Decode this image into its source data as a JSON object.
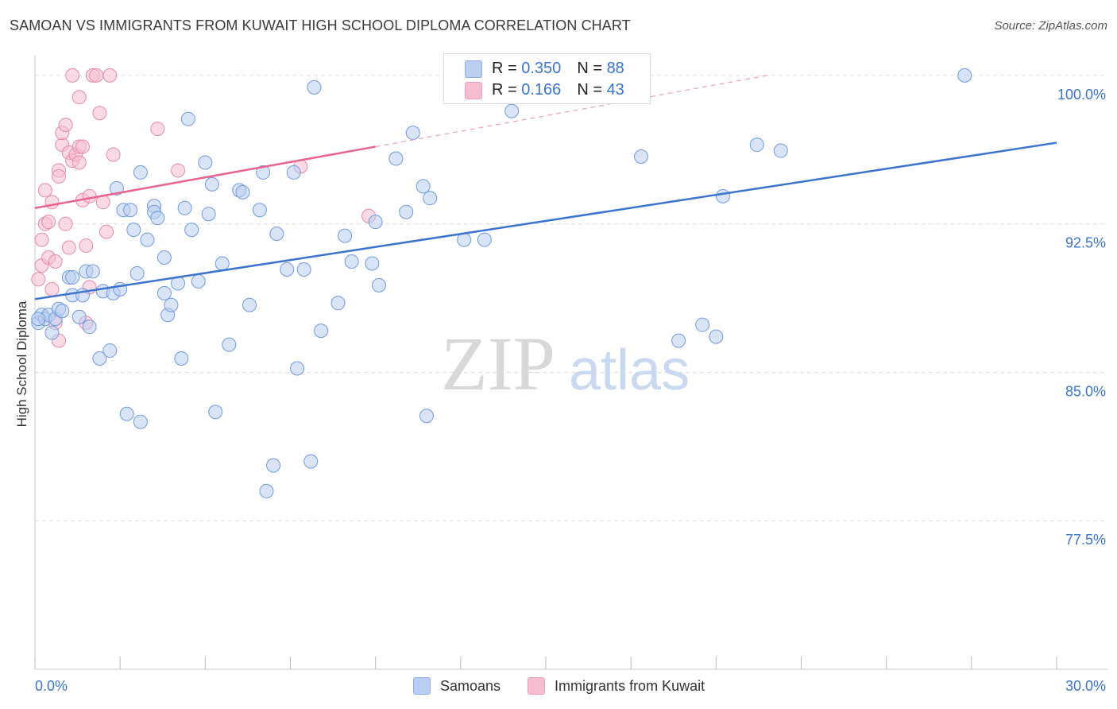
{
  "title": "SAMOAN VS IMMIGRANTS FROM KUWAIT HIGH SCHOOL DIPLOMA CORRELATION CHART",
  "source": "Source: ZipAtlas.com",
  "watermark": {
    "zip": "ZIP",
    "atlas": "atlas"
  },
  "colors": {
    "blue": "#3b74d0",
    "blue_fill": "#b9cef0",
    "pink": "#e8638f",
    "pink_fill": "#f5bed0",
    "grid": "#dddddd",
    "tick_label": "#3b74d0"
  },
  "legend_top": {
    "rows": [
      {
        "r_label": "R = ",
        "r_value": "0.350",
        "n_label": "N = ",
        "n_value": "88"
      },
      {
        "r_label": "R = ",
        "r_value": "0.166",
        "n_label": "N = ",
        "n_value": "43"
      }
    ]
  },
  "legend_bottom": [
    "Samoans",
    "Immigrants from Kuwait"
  ],
  "chart_data": {
    "type": "scatter",
    "title": "SAMOAN VS IMMIGRANTS FROM KUWAIT HIGH SCHOOL DIPLOMA CORRELATION CHART",
    "xlabel": "",
    "ylabel": "High School Diploma",
    "xlim": [
      0,
      30
    ],
    "ylim": [
      70,
      101
    ],
    "x_tick_labels": [
      "0.0%",
      "30.0%"
    ],
    "y_ticks": [
      77.5,
      85.0,
      92.5,
      100.0
    ],
    "y_tick_labels": [
      "77.5%",
      "85.0%",
      "92.5%",
      "100.0%"
    ],
    "grid": true,
    "series": [
      {
        "name": "Samoans",
        "r": 0.35,
        "n": 88,
        "trend": {
          "x": [
            0.0,
            30.0
          ],
          "y": [
            88.7,
            96.6
          ]
        },
        "points": [
          [
            0.1,
            87.5
          ],
          [
            0.2,
            87.9
          ],
          [
            0.3,
            87.7
          ],
          [
            0.4,
            87.9
          ],
          [
            0.5,
            87.0
          ],
          [
            0.6,
            87.7
          ],
          [
            0.7,
            88.2
          ],
          [
            0.8,
            88.1
          ],
          [
            1.0,
            89.8
          ],
          [
            1.1,
            88.9
          ],
          [
            1.1,
            89.8
          ],
          [
            1.3,
            87.8
          ],
          [
            1.4,
            88.9
          ],
          [
            1.5,
            90.1
          ],
          [
            1.6,
            87.3
          ],
          [
            1.7,
            90.1
          ],
          [
            1.9,
            85.7
          ],
          [
            2.0,
            89.1
          ],
          [
            2.2,
            86.1
          ],
          [
            2.3,
            89.0
          ],
          [
            2.4,
            94.3
          ],
          [
            2.5,
            89.2
          ],
          [
            2.6,
            93.2
          ],
          [
            2.7,
            82.9
          ],
          [
            2.8,
            93.2
          ],
          [
            2.9,
            92.2
          ],
          [
            3.0,
            90.0
          ],
          [
            3.1,
            95.1
          ],
          [
            3.1,
            82.5
          ],
          [
            3.3,
            91.7
          ],
          [
            3.5,
            93.4
          ],
          [
            3.5,
            93.1
          ],
          [
            3.6,
            92.8
          ],
          [
            3.8,
            90.8
          ],
          [
            3.8,
            89.0
          ],
          [
            3.9,
            87.9
          ],
          [
            4.0,
            88.4
          ],
          [
            4.2,
            89.5
          ],
          [
            4.3,
            85.7
          ],
          [
            4.4,
            93.3
          ],
          [
            4.5,
            97.8
          ],
          [
            4.6,
            92.2
          ],
          [
            4.8,
            89.6
          ],
          [
            5.0,
            95.6
          ],
          [
            5.1,
            93.0
          ],
          [
            5.2,
            94.5
          ],
          [
            5.3,
            83.0
          ],
          [
            5.5,
            90.5
          ],
          [
            5.7,
            86.4
          ],
          [
            6.0,
            94.2
          ],
          [
            6.1,
            94.1
          ],
          [
            6.3,
            88.4
          ],
          [
            6.6,
            93.2
          ],
          [
            6.7,
            95.1
          ],
          [
            6.8,
            79.0
          ],
          [
            7.0,
            80.3
          ],
          [
            7.1,
            92.0
          ],
          [
            7.4,
            90.2
          ],
          [
            7.6,
            95.1
          ],
          [
            7.7,
            85.2
          ],
          [
            7.9,
            90.2
          ],
          [
            8.1,
            80.5
          ],
          [
            8.2,
            99.4
          ],
          [
            8.4,
            87.1
          ],
          [
            8.9,
            88.5
          ],
          [
            9.1,
            91.9
          ],
          [
            9.3,
            90.6
          ],
          [
            9.9,
            90.5
          ],
          [
            10.0,
            92.6
          ],
          [
            10.1,
            89.4
          ],
          [
            10.6,
            95.8
          ],
          [
            10.9,
            93.1
          ],
          [
            11.1,
            97.1
          ],
          [
            11.4,
            94.4
          ],
          [
            11.6,
            93.8
          ],
          [
            11.5,
            82.8
          ],
          [
            12.6,
            91.7
          ],
          [
            13.2,
            91.7
          ],
          [
            14.0,
            98.2
          ],
          [
            17.8,
            95.9
          ],
          [
            18.9,
            86.6
          ],
          [
            19.6,
            87.4
          ],
          [
            20.0,
            86.8
          ],
          [
            20.2,
            93.9
          ],
          [
            21.2,
            96.5
          ],
          [
            21.9,
            96.2
          ],
          [
            27.3,
            100.0
          ],
          [
            0.1,
            87.7
          ]
        ]
      },
      {
        "name": "Immigrants from Kuwait",
        "r": 0.166,
        "n": 43,
        "trend": {
          "x": [
            0.0,
            10.0
          ],
          "y": [
            93.3,
            96.4
          ]
        },
        "trend_extension": {
          "x": [
            10.0,
            21.5
          ],
          "y": [
            96.4,
            100.0
          ]
        },
        "points": [
          [
            0.1,
            89.7
          ],
          [
            0.2,
            90.4
          ],
          [
            0.2,
            91.7
          ],
          [
            0.3,
            92.5
          ],
          [
            0.3,
            94.2
          ],
          [
            0.4,
            92.6
          ],
          [
            0.4,
            90.8
          ],
          [
            0.5,
            89.2
          ],
          [
            0.5,
            93.6
          ],
          [
            0.6,
            90.6
          ],
          [
            0.6,
            87.5
          ],
          [
            0.7,
            86.6
          ],
          [
            0.7,
            95.2
          ],
          [
            0.7,
            94.9
          ],
          [
            0.8,
            96.5
          ],
          [
            0.8,
            97.1
          ],
          [
            0.9,
            97.5
          ],
          [
            0.9,
            92.5
          ],
          [
            1.0,
            91.3
          ],
          [
            1.0,
            96.1
          ],
          [
            1.1,
            100.0
          ],
          [
            1.1,
            95.7
          ],
          [
            1.2,
            96.0
          ],
          [
            1.3,
            98.9
          ],
          [
            1.3,
            96.4
          ],
          [
            1.3,
            95.6
          ],
          [
            1.4,
            96.4
          ],
          [
            1.4,
            93.7
          ],
          [
            1.5,
            91.4
          ],
          [
            1.5,
            87.5
          ],
          [
            1.6,
            89.3
          ],
          [
            1.6,
            93.9
          ],
          [
            1.7,
            100.0
          ],
          [
            1.8,
            100.0
          ],
          [
            1.9,
            98.1
          ],
          [
            2.0,
            93.6
          ],
          [
            2.1,
            92.1
          ],
          [
            3.6,
            97.3
          ],
          [
            4.2,
            95.2
          ],
          [
            7.8,
            95.4
          ],
          [
            9.8,
            92.9
          ],
          [
            2.2,
            100.0
          ],
          [
            2.3,
            96.0
          ]
        ]
      }
    ]
  }
}
